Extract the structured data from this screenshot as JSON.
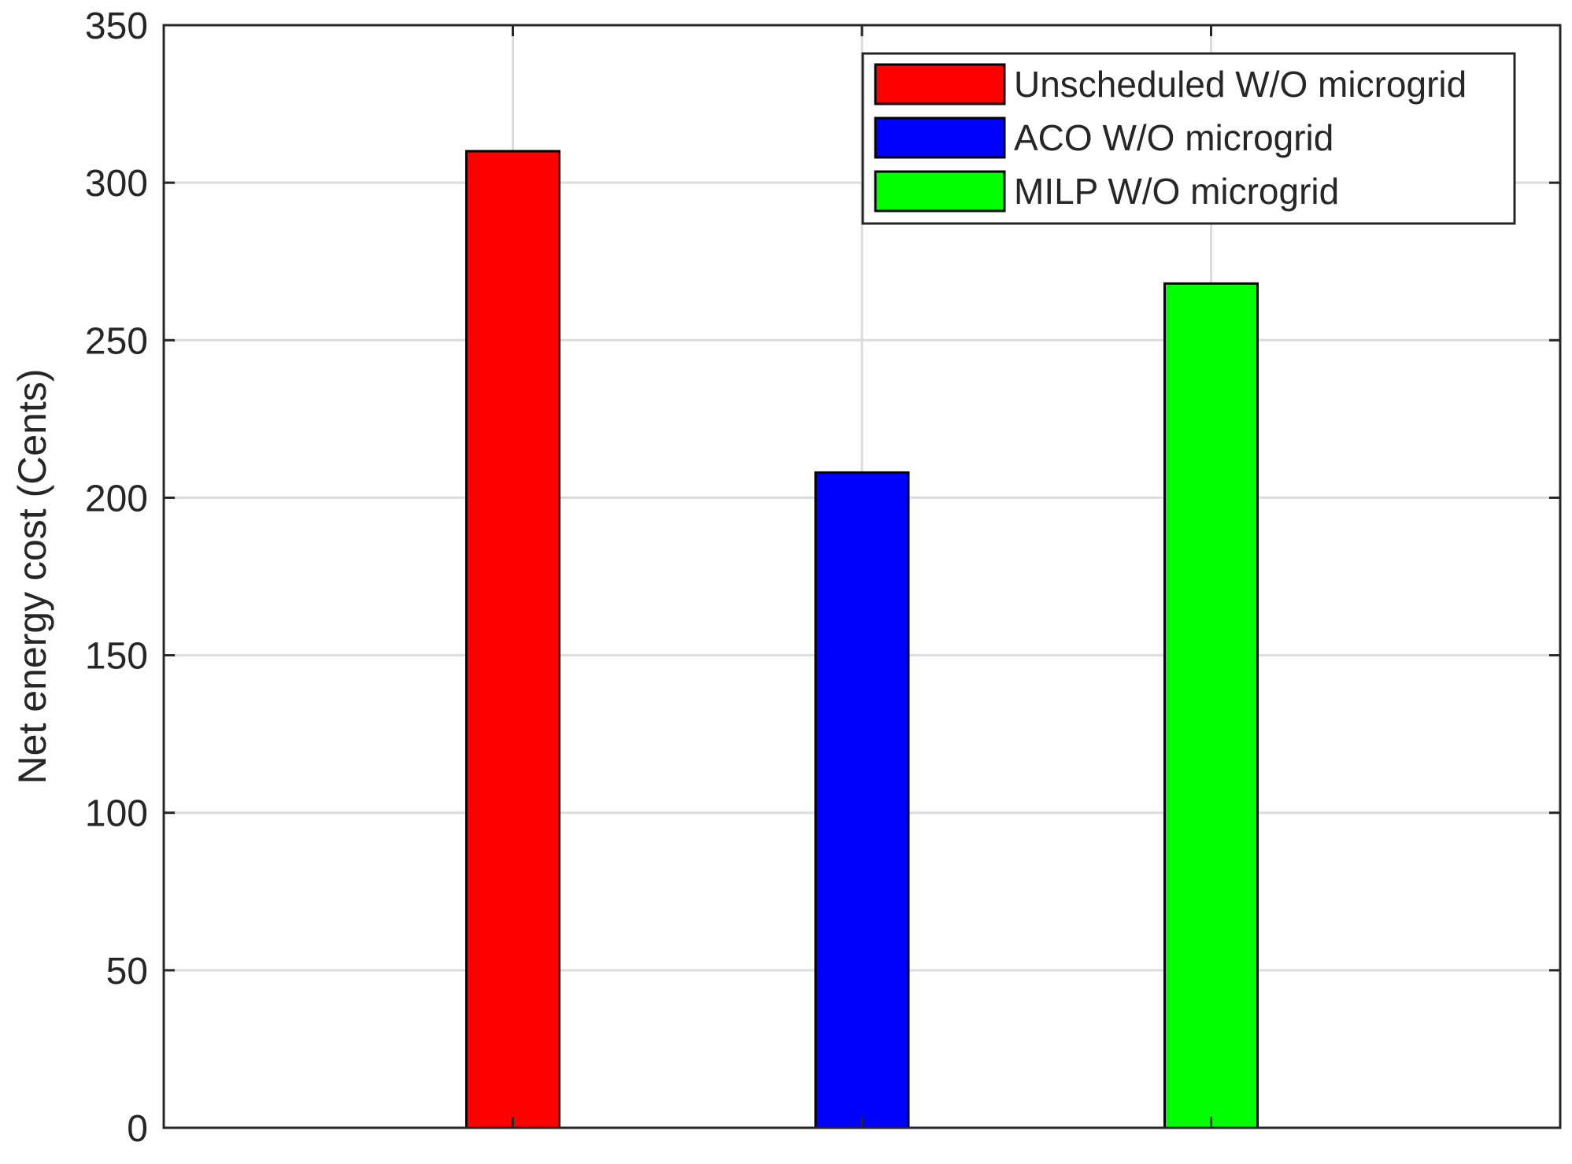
{
  "chart_data": {
    "type": "bar",
    "title": "",
    "xlabel": "",
    "ylabel": "Net energy cost (Cents)",
    "ylim": [
      0,
      350
    ],
    "yticks": [
      0,
      50,
      100,
      150,
      200,
      250,
      300,
      350
    ],
    "grid": true,
    "legend_position": "top-right",
    "series": [
      {
        "name": "Unscheduled W/O microgrid",
        "value": 310,
        "color": "#ff0000"
      },
      {
        "name": "ACO W/O microgrid",
        "value": 208,
        "color": "#0000ff"
      },
      {
        "name": "MILP W/O microgrid",
        "value": 268,
        "color": "#00ff00"
      }
    ]
  }
}
